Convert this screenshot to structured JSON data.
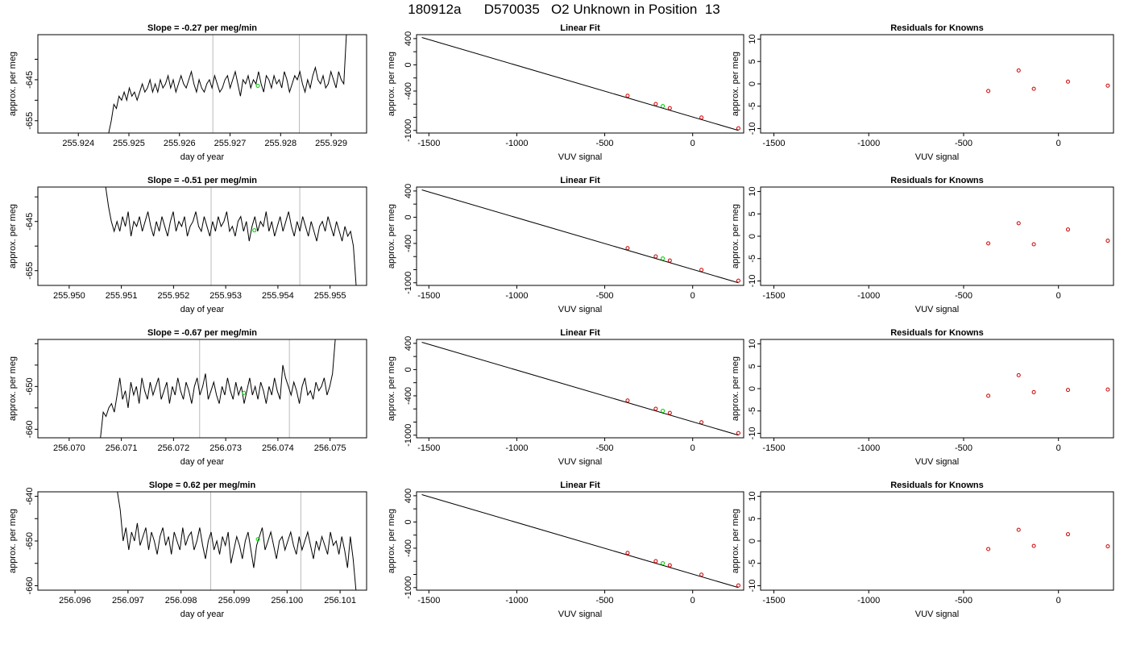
{
  "page_title": "180912a      D570035   O2 Unknown in Position  13",
  "colors": {
    "series": "#000000",
    "unknown_marker": "#00cc00",
    "known_marker": "#cc0000",
    "gridline": "#bbbbbb"
  },
  "chart_data": [
    {
      "row": 0,
      "type": "line",
      "title": "Slope =  -0.27  per meg/min",
      "xlabel": "day of year",
      "ylabel": "approx. per meg",
      "xlim": [
        255.9232,
        255.9297
      ],
      "ylim": [
        -658,
        -634
      ],
      "xticks": [
        255.924,
        255.925,
        255.926,
        255.927,
        255.928,
        255.929
      ],
      "xticklabels": [
        "255.924",
        "255.925",
        "255.926",
        "255.927",
        "255.928",
        "255.929"
      ],
      "yticks": [
        -655,
        -650,
        -645,
        -640
      ],
      "yticklabels": [
        "-655",
        "",
        "-645",
        ""
      ],
      "vlines": [
        255.92666,
        255.92837
      ],
      "series_x": [
        255.9246,
        255.9293
      ],
      "series_y": [
        -658,
        -655,
        -651,
        -652,
        -649,
        -650,
        -648,
        -650,
        -647,
        -649,
        -648,
        -650,
        -648,
        -646,
        -648,
        -647,
        -645,
        -648,
        -646,
        -648,
        -645,
        -647,
        -646,
        -644,
        -647,
        -645,
        -648,
        -646,
        -644,
        -646,
        -647,
        -645,
        -643,
        -646,
        -648,
        -645,
        -647,
        -648,
        -646,
        -645,
        -647,
        -644,
        -646,
        -648,
        -647,
        -645,
        -644,
        -647,
        -645,
        -643,
        -646,
        -649,
        -645,
        -646,
        -644,
        -647,
        -645,
        -646,
        -643,
        -646,
        -648,
        -644,
        -645,
        -647,
        -644,
        -646,
        -645,
        -647,
        -643,
        -645,
        -648,
        -646,
        -644,
        -645,
        -643,
        -646,
        -648,
        -645,
        -647,
        -644,
        -642,
        -645,
        -646,
        -644,
        -647,
        -646,
        -643,
        -645,
        -647,
        -643,
        -645,
        -646,
        -634
      ],
      "unknown_point": {
        "x": 255.92755,
        "y": -646.5
      }
    },
    {
      "row": 0,
      "type": "scatter",
      "title": "Linear Fit",
      "xlabel": "VUV signal",
      "ylabel": "approx. per meg",
      "xlim": [
        -1570,
        290
      ],
      "ylim": [
        -1040,
        460
      ],
      "xticks": [
        -1500,
        -1000,
        -500,
        0
      ],
      "xticklabels": [
        "-1500",
        "-1000",
        "-500",
        "0"
      ],
      "yticks": [
        -1000,
        -800,
        -600,
        -400,
        -200,
        0,
        200,
        400
      ],
      "yticklabels": [
        "-1000",
        "",
        "",
        "-400",
        "",
        "0",
        "",
        "400"
      ],
      "fit_line": [
        [
          -1540,
          417
        ],
        [
          260,
          -1000
        ]
      ],
      "knowns": [
        [
          -370,
          -472
        ],
        [
          -210,
          -598
        ],
        [
          -130,
          -661
        ],
        [
          50,
          -803
        ],
        [
          260,
          -968
        ]
      ],
      "unknown_point": {
        "x": -170,
        "y": -629
      }
    },
    {
      "row": 0,
      "type": "scatter",
      "title": "Residuals for Knowns",
      "xlabel": "VUV signal",
      "ylabel": "approx. per meg",
      "xlim": [
        -1570,
        290
      ],
      "ylim": [
        -11,
        11
      ],
      "xticks": [
        -1500,
        -1000,
        -500,
        0
      ],
      "xticklabels": [
        "-1500",
        "-1000",
        "-500",
        "0"
      ],
      "yticks": [
        -10,
        -5,
        0,
        5,
        10
      ],
      "yticklabels": [
        "-10",
        "-5",
        "0",
        "5",
        "10"
      ],
      "points": [
        [
          -370,
          -1.6
        ],
        [
          -210,
          3
        ],
        [
          -130,
          -1.1
        ],
        [
          50,
          0.5
        ],
        [
          260,
          -0.4
        ]
      ]
    },
    {
      "row": 1,
      "type": "line",
      "title": "Slope =  -0.51  per meg/min",
      "xlabel": "day of year",
      "ylabel": "approx. per meg",
      "xlim": [
        255.9494,
        255.9557
      ],
      "ylim": [
        -658,
        -638
      ],
      "xticks": [
        255.95,
        255.951,
        255.952,
        255.953,
        255.954,
        255.955
      ],
      "xticklabels": [
        "255.950",
        "255.951",
        "255.952",
        "255.953",
        "255.954",
        "255.955"
      ],
      "yticks": [
        -655,
        -650,
        -645,
        -640
      ],
      "yticklabels": [
        "-655",
        "",
        "-645",
        ""
      ],
      "vlines": [
        255.95272,
        255.95442
      ],
      "series_x": [
        255.9507,
        255.9555
      ],
      "series_y": [
        -638,
        -642,
        -645,
        -647,
        -645,
        -647,
        -644,
        -646,
        -643,
        -648,
        -645,
        -646,
        -644,
        -647,
        -645,
        -643,
        -646,
        -648,
        -645,
        -647,
        -644,
        -646,
        -648,
        -645,
        -643,
        -647,
        -645,
        -646,
        -644,
        -648,
        -646,
        -645,
        -643,
        -646,
        -647,
        -644,
        -646,
        -648,
        -645,
        -647,
        -644,
        -646,
        -645,
        -643,
        -647,
        -646,
        -648,
        -645,
        -644,
        -647,
        -645,
        -649,
        -646,
        -644,
        -647,
        -645,
        -646,
        -643,
        -647,
        -645,
        -648,
        -646,
        -644,
        -647,
        -645,
        -643,
        -646,
        -648,
        -645,
        -647,
        -644,
        -646,
        -648,
        -645,
        -647,
        -649,
        -646,
        -645,
        -647,
        -644,
        -646,
        -648,
        -645,
        -647,
        -649,
        -646,
        -648,
        -647,
        -650,
        -658
      ],
      "unknown_point": {
        "x": 255.95355,
        "y": -646.8
      }
    },
    {
      "row": 1,
      "type": "scatter",
      "title": "Linear Fit",
      "xlabel": "VUV signal",
      "ylabel": "approx. per meg",
      "xlim": [
        -1570,
        290
      ],
      "ylim": [
        -1040,
        460
      ],
      "xticks": [
        -1500,
        -1000,
        -500,
        0
      ],
      "xticklabels": [
        "-1500",
        "-1000",
        "-500",
        "0"
      ],
      "yticks": [
        -1000,
        -800,
        -600,
        -400,
        -200,
        0,
        200,
        400
      ],
      "yticklabels": [
        "-1000",
        "",
        "",
        "-400",
        "",
        "0",
        "",
        "400"
      ],
      "fit_line": [
        [
          -1540,
          417
        ],
        [
          260,
          -1000
        ]
      ],
      "knowns": [
        [
          -370,
          -472
        ],
        [
          -210,
          -598
        ],
        [
          -130,
          -661
        ],
        [
          50,
          -803
        ],
        [
          260,
          -968
        ]
      ],
      "unknown_point": {
        "x": -170,
        "y": -629
      }
    },
    {
      "row": 1,
      "type": "scatter",
      "title": "Residuals for Knowns",
      "xlabel": "VUV signal",
      "ylabel": "approx. per meg",
      "xlim": [
        -1570,
        290
      ],
      "ylim": [
        -11,
        11
      ],
      "xticks": [
        -1500,
        -1000,
        -500,
        0
      ],
      "xticklabels": [
        "-1500",
        "-1000",
        "-500",
        "0"
      ],
      "yticks": [
        -10,
        -5,
        0,
        5,
        10
      ],
      "yticklabels": [
        "-10",
        "-5",
        "0",
        "5",
        "10"
      ],
      "points": [
        [
          -370,
          -1.6
        ],
        [
          -210,
          2.9
        ],
        [
          -130,
          -1.8
        ],
        [
          50,
          1.5
        ],
        [
          260,
          -1.0
        ]
      ]
    },
    {
      "row": 2,
      "type": "line",
      "title": "Slope =  -0.67  per meg/min",
      "xlabel": "day of year",
      "ylabel": "approx. per meg",
      "xlim": [
        256.0694,
        256.0757
      ],
      "ylim": [
        -662,
        -639
      ],
      "xticks": [
        256.07,
        256.071,
        256.072,
        256.073,
        256.074,
        256.075
      ],
      "xticklabels": [
        "256.070",
        "256.071",
        "256.072",
        "256.073",
        "256.074",
        "256.075"
      ],
      "yticks": [
        -660,
        -655,
        -650,
        -645,
        -640
      ],
      "yticklabels": [
        "-660",
        "",
        "-650",
        "",
        ""
      ],
      "vlines": [
        256.0725,
        256.07422
      ],
      "series_x": [
        256.0706,
        256.0751
      ],
      "series_y": [
        -662,
        -656,
        -657,
        -655,
        -654,
        -656,
        -652,
        -648,
        -653,
        -651,
        -655,
        -649,
        -652,
        -650,
        -654,
        -648,
        -651,
        -653,
        -649,
        -652,
        -650,
        -648,
        -653,
        -651,
        -649,
        -654,
        -650,
        -652,
        -648,
        -651,
        -653,
        -649,
        -651,
        -654,
        -650,
        -648,
        -652,
        -650,
        -647,
        -653,
        -651,
        -649,
        -652,
        -654,
        -650,
        -652,
        -648,
        -651,
        -653,
        -649,
        -652,
        -650,
        -654,
        -651,
        -648,
        -652,
        -650,
        -653,
        -649,
        -651,
        -654,
        -650,
        -652,
        -648,
        -651,
        -653,
        -645,
        -648,
        -650,
        -652,
        -649,
        -651,
        -654,
        -650,
        -648,
        -652,
        -651,
        -653,
        -649,
        -651,
        -650,
        -648,
        -652,
        -650,
        -647,
        -639
      ],
      "unknown_point": {
        "x": 256.07335,
        "y": -651.5
      }
    },
    {
      "row": 2,
      "type": "scatter",
      "title": "Linear Fit",
      "xlabel": "VUV signal",
      "ylabel": "approx. per meg",
      "xlim": [
        -1570,
        290
      ],
      "ylim": [
        -1040,
        460
      ],
      "xticks": [
        -1500,
        -1000,
        -500,
        0
      ],
      "xticklabels": [
        "-1500",
        "-1000",
        "-500",
        "0"
      ],
      "yticks": [
        -1000,
        -800,
        -600,
        -400,
        -200,
        0,
        200,
        400
      ],
      "yticklabels": [
        "-1000",
        "",
        "",
        "-400",
        "",
        "0",
        "",
        "400"
      ],
      "fit_line": [
        [
          -1540,
          417
        ],
        [
          260,
          -1000
        ]
      ],
      "knowns": [
        [
          -370,
          -472
        ],
        [
          -210,
          -598
        ],
        [
          -130,
          -661
        ],
        [
          50,
          -803
        ],
        [
          260,
          -968
        ]
      ],
      "unknown_point": {
        "x": -170,
        "y": -629
      }
    },
    {
      "row": 2,
      "type": "scatter",
      "title": "Residuals for Knowns",
      "xlabel": "VUV signal",
      "ylabel": "approx. per meg",
      "xlim": [
        -1570,
        290
      ],
      "ylim": [
        -11,
        11
      ],
      "xticks": [
        -1500,
        -1000,
        -500,
        0
      ],
      "xticklabels": [
        "-1500",
        "-1000",
        "-500",
        "0"
      ],
      "yticks": [
        -10,
        -5,
        0,
        5,
        10
      ],
      "yticklabels": [
        "-10",
        "-5",
        "0",
        "5",
        "10"
      ],
      "points": [
        [
          -370,
          -1.6
        ],
        [
          -210,
          3
        ],
        [
          -130,
          -0.8
        ],
        [
          50,
          -0.3
        ],
        [
          260,
          -0.2
        ]
      ]
    },
    {
      "row": 3,
      "type": "line",
      "title": "Slope =  0.62  per meg/min",
      "xlabel": "day of year",
      "ylabel": "approx. per meg",
      "xlim": [
        256.0953,
        256.1015
      ],
      "ylim": [
        -661,
        -639
      ],
      "xticks": [
        256.096,
        256.097,
        256.098,
        256.099,
        256.1,
        256.101
      ],
      "xticklabels": [
        "256.096",
        "256.097",
        "256.098",
        "256.099",
        "256.100",
        "256.101"
      ],
      "yticks": [
        -660,
        -655,
        -650,
        -645,
        -640
      ],
      "yticklabels": [
        "-660",
        "",
        "-650",
        "",
        "-640"
      ],
      "vlines": [
        256.09856,
        256.10026
      ],
      "series_x": [
        256.0968,
        256.1013
      ],
      "series_y": [
        -639,
        -643,
        -650,
        -647,
        -652,
        -648,
        -650,
        -646,
        -651,
        -649,
        -647,
        -652,
        -648,
        -650,
        -653,
        -649,
        -647,
        -651,
        -649,
        -653,
        -648,
        -650,
        -652,
        -647,
        -651,
        -649,
        -648,
        -652,
        -650,
        -647,
        -651,
        -654,
        -650,
        -648,
        -652,
        -650,
        -653,
        -649,
        -651,
        -648,
        -655,
        -652,
        -649,
        -651,
        -654,
        -650,
        -648,
        -652,
        -656,
        -651,
        -649,
        -647,
        -652,
        -650,
        -648,
        -651,
        -654,
        -650,
        -649,
        -652,
        -650,
        -648,
        -651,
        -653,
        -649,
        -652,
        -650,
        -648,
        -651,
        -654,
        -650,
        -652,
        -649,
        -651,
        -653,
        -648,
        -651,
        -650,
        -653,
        -649,
        -652,
        -656,
        -649,
        -654,
        -661
      ],
      "unknown_point": {
        "x": 256.09945,
        "y": -649.6
      }
    },
    {
      "row": 3,
      "type": "scatter",
      "title": "Linear Fit",
      "xlabel": "VUV signal",
      "ylabel": "approx. per meg",
      "xlim": [
        -1570,
        290
      ],
      "ylim": [
        -1040,
        460
      ],
      "xticks": [
        -1500,
        -1000,
        -500,
        0
      ],
      "xticklabels": [
        "-1500",
        "-1000",
        "-500",
        "0"
      ],
      "yticks": [
        -1000,
        -800,
        -600,
        -400,
        -200,
        0,
        200,
        400
      ],
      "yticklabels": [
        "-1000",
        "",
        "",
        "-400",
        "",
        "0",
        "",
        "400"
      ],
      "fit_line": [
        [
          -1540,
          417
        ],
        [
          260,
          -1000
        ]
      ],
      "knowns": [
        [
          -370,
          -472
        ],
        [
          -210,
          -598
        ],
        [
          -130,
          -661
        ],
        [
          50,
          -803
        ],
        [
          260,
          -968
        ]
      ],
      "unknown_point": {
        "x": -170,
        "y": -629
      }
    },
    {
      "row": 3,
      "type": "scatter",
      "title": "Residuals for Knowns",
      "xlabel": "VUV signal",
      "ylabel": "approx. per meg",
      "xlim": [
        -1570,
        290
      ],
      "ylim": [
        -11,
        11
      ],
      "xticks": [
        -1500,
        -1000,
        -500,
        0
      ],
      "xticklabels": [
        "-1500",
        "-1000",
        "-500",
        "0"
      ],
      "yticks": [
        -10,
        -5,
        0,
        5,
        10
      ],
      "yticklabels": [
        "-10",
        "-5",
        "0",
        "5",
        "10"
      ],
      "points": [
        [
          -370,
          -1.8
        ],
        [
          -210,
          2.5
        ],
        [
          -130,
          -1.1
        ],
        [
          50,
          1.5
        ],
        [
          260,
          -1.2
        ]
      ]
    }
  ]
}
